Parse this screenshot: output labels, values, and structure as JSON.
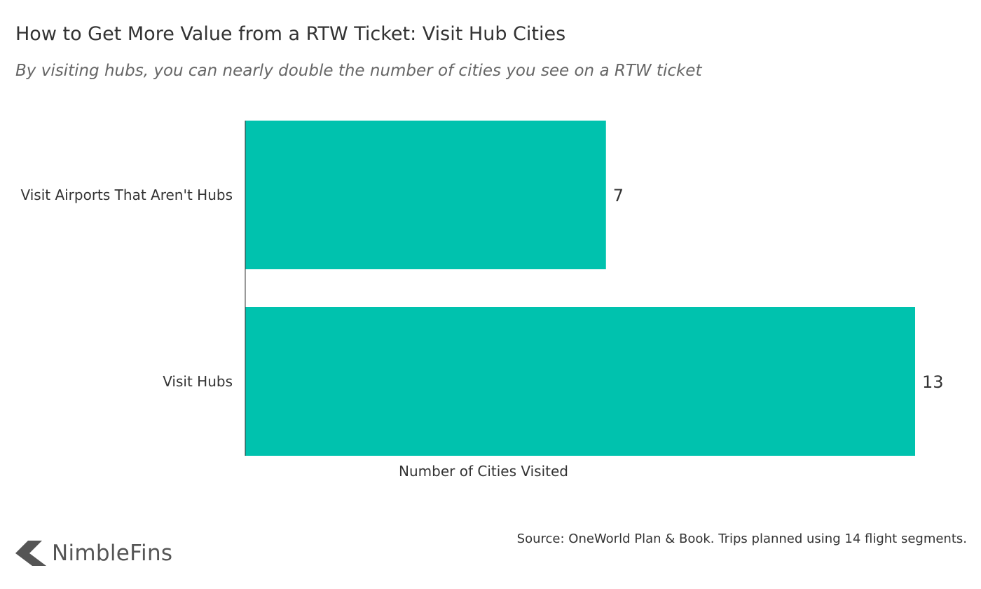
{
  "header": {
    "title": "How to Get More Value from a RTW Ticket: Visit Hub Cities",
    "subtitle": "By visiting hubs, you can nearly double the number of cities you see on a RTW ticket"
  },
  "footer": {
    "source": "Source: OneWorld Plan & Book. Trips planned using 14 flight segments.",
    "brand": "NimbleFins"
  },
  "colors": {
    "bar": "#00C2AE",
    "axis": "#333333",
    "text": "#333333",
    "logo": "#555555"
  },
  "chart_data": {
    "type": "bar",
    "orientation": "horizontal",
    "title": "How to Get More Value from a RTW Ticket: Visit Hub Cities",
    "subtitle": "By visiting hubs, you can nearly double the number of cities you see on a RTW ticket",
    "categories": [
      "Visit Airports That Aren't Hubs",
      "Visit Hubs"
    ],
    "values": [
      7,
      13
    ],
    "data_labels": [
      "7",
      "13"
    ],
    "xlabel": "Number of Cities Visited",
    "ylabel": "",
    "xlim": [
      0,
      13
    ],
    "grid": false,
    "legend": "none"
  }
}
